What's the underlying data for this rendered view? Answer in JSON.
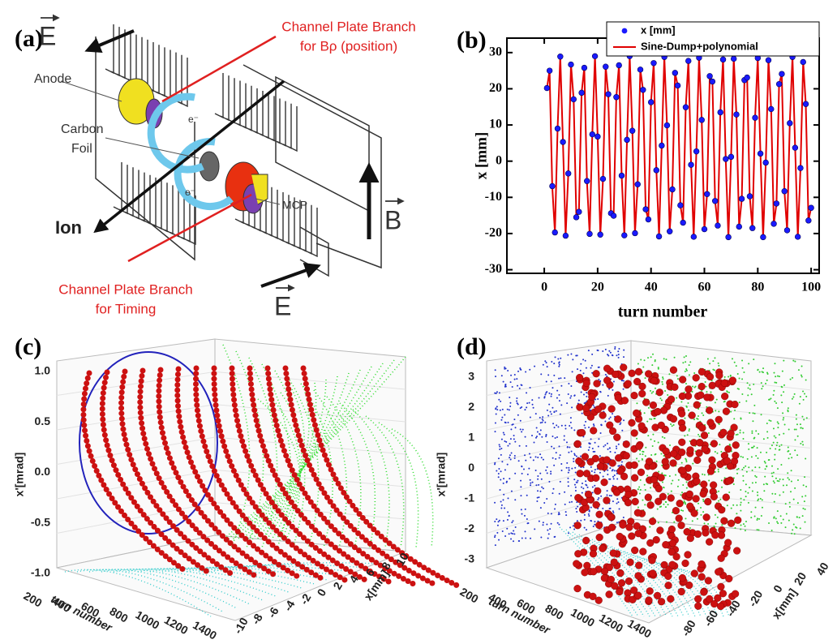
{
  "diagram": {
    "label": "(a)",
    "field_labels": [
      "E",
      "E"
    ],
    "branch_top": [
      "Channel Plate Branch",
      "for Bρ (position)"
    ],
    "anode": "Anode",
    "foil": [
      "Carbon",
      "Foil"
    ],
    "electron_labels": [
      "e⁻",
      "e⁻"
    ],
    "mcp": "MCP",
    "ion": "Ion",
    "magnet_label": "B",
    "branch_bottom": [
      "Channel Plate Branch",
      "for Timing"
    ]
  },
  "chart_data": [
    {
      "type": "scatter",
      "panel_label": "(b)",
      "x_label": "turn number",
      "y_label": "x [mm]",
      "x": [
        1,
        2,
        3,
        4,
        5,
        6,
        7,
        8,
        9,
        10,
        11,
        12,
        13,
        14,
        15,
        16,
        17,
        18,
        19,
        20,
        21,
        22,
        23,
        24,
        25,
        26,
        27,
        28,
        29,
        30,
        31,
        32,
        33,
        34,
        35,
        36,
        37,
        38,
        39,
        40,
        41,
        42,
        43,
        44,
        45,
        46,
        47,
        48,
        49,
        50,
        51,
        52,
        53,
        54,
        55,
        56,
        57,
        58,
        59,
        60,
        61,
        62,
        63,
        64,
        65,
        66,
        67,
        68,
        69,
        70,
        71,
        72,
        73,
        74,
        75,
        76,
        77,
        78,
        79,
        80,
        81,
        82,
        83,
        84,
        85,
        86,
        87,
        88,
        89,
        90,
        91,
        92,
        93,
        94,
        95,
        96,
        97,
        98,
        99,
        100
      ],
      "series": [
        {
          "name": "x [mm]",
          "style": "marker",
          "color": "#1a1aff",
          "values": [
            20.2,
            25.0,
            -6.9,
            -19.7,
            9.0,
            28.9,
            5.3,
            -20.6,
            -3.4,
            26.7,
            17.1,
            -15.5,
            -14.0,
            18.9,
            25.8,
            -5.5,
            -20.1,
            7.4,
            29.0,
            6.8,
            -20.3,
            -4.9,
            26.1,
            18.5,
            -14.4,
            -15.1,
            17.7,
            26.5,
            -4.0,
            -20.5,
            5.9,
            29.0,
            8.4,
            -19.9,
            -6.4,
            25.3,
            19.7,
            -13.3,
            -16.1,
            16.3,
            27.1,
            -2.5,
            -20.8,
            4.3,
            28.8,
            9.9,
            -19.4,
            -7.8,
            24.4,
            20.9,
            -12.2,
            -17.0,
            14.9,
            27.7,
            -1.0,
            -20.9,
            2.7,
            28.6,
            11.4,
            -18.8,
            -9.1,
            23.5,
            22.0,
            -11.0,
            -17.8,
            13.5,
            28.1,
            0.6,
            -21.0,
            1.2,
            28.3,
            12.9,
            -18.1,
            -10.4,
            22.4,
            23.1,
            -9.7,
            -18.5,
            12.0,
            28.5,
            2.1,
            -21.0,
            -0.4,
            27.9,
            14.4,
            -17.3,
            -11.7,
            21.3,
            24.1,
            -8.3,
            -19.1,
            10.5,
            28.8,
            3.7,
            -20.9,
            -1.9,
            27.4,
            15.8,
            -16.4,
            -12.9
          ]
        },
        {
          "name": "Sine-Dump+polynomial",
          "style": "line",
          "color": "#e00000",
          "values": [
            20.2,
            25.0,
            -6.9,
            -19.7,
            9.0,
            28.9,
            5.3,
            -20.6,
            -3.4,
            26.7,
            17.1,
            -15.5,
            -14.0,
            18.9,
            25.8,
            -5.5,
            -20.1,
            7.4,
            29.0,
            6.8,
            -20.3,
            -4.9,
            26.1,
            18.5,
            -14.4,
            -15.1,
            17.7,
            26.5,
            -4.0,
            -20.5,
            5.9,
            29.0,
            8.4,
            -19.9,
            -6.4,
            25.3,
            19.7,
            -13.3,
            -16.1,
            16.3,
            27.1,
            -2.5,
            -20.8,
            4.3,
            28.8,
            9.9,
            -19.4,
            -7.8,
            24.4,
            20.9,
            -12.2,
            -17.0,
            14.9,
            27.7,
            -1.0,
            -20.9,
            2.7,
            28.6,
            11.4,
            -18.8,
            -9.1,
            23.5,
            22.0,
            -11.0,
            -17.8,
            13.5,
            28.1,
            0.6,
            -21.0,
            1.2,
            28.3,
            12.9,
            -18.1,
            -10.4,
            22.4,
            23.1,
            -9.7,
            -18.5,
            12.0,
            28.5,
            2.1,
            -21.0,
            -0.4,
            27.9,
            14.4,
            -17.3,
            -11.7,
            21.3,
            24.1,
            -8.3,
            -19.1,
            10.5,
            28.8,
            3.7,
            -20.9,
            -1.9,
            27.4,
            15.8,
            -16.4,
            -12.9
          ]
        }
      ],
      "xlim": [
        -14,
        103
      ],
      "xticks": [
        0,
        20,
        40,
        60,
        80,
        100
      ],
      "ylim": [
        -31,
        34
      ],
      "yticks": [
        -30,
        -20,
        -10,
        0,
        10,
        20,
        30
      ],
      "legend": "upper right"
    },
    {
      "type": "scatter3d",
      "panel_label": "(c)",
      "z_label": "x'[mrad]",
      "t_label": "turn number",
      "x_label": "x[mm]",
      "zlim": [
        -1.0,
        1.0
      ],
      "zticks": [
        {
          "value": 1.0,
          "label": "1.0"
        },
        0.5,
        {
          "value": 0,
          "label": "0.0"
        },
        -0.5,
        {
          "value": -1.0,
          "label": "-1.0"
        }
      ],
      "tlim": [
        200,
        1400
      ],
      "tticks": [
        200,
        400,
        600,
        800,
        1000,
        1200,
        1400
      ],
      "xlim": [
        -10,
        10
      ],
      "xticks": [
        -10,
        -8,
        -6,
        -4,
        -2,
        0,
        2,
        4,
        6,
        8,
        10
      ]
    },
    {
      "type": "scatter3d",
      "panel_label": "(d)",
      "z_label": "x'[mrad]",
      "t_label": "turn number",
      "x_label": "x[mm]",
      "zlim": [
        -3,
        3
      ],
      "zticks": [
        3,
        2,
        1,
        0,
        -1,
        -2,
        -3
      ],
      "tlim": [
        200,
        1400
      ],
      "tticks": [
        200,
        400,
        600,
        800,
        1000,
        1200,
        1400
      ],
      "xlim": [
        -80,
        40
      ],
      "xticks": [
        -80,
        -60,
        -40,
        -20,
        0,
        20,
        40
      ]
    }
  ]
}
